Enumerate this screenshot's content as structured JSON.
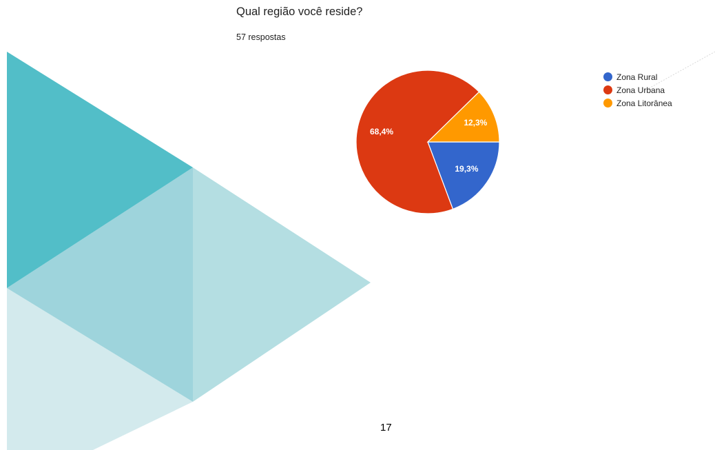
{
  "chart": {
    "title": "Qual região você reside?",
    "subtitle": "57 respostas"
  },
  "chart_data": {
    "type": "pie",
    "title": "Qual região você reside?",
    "subtitle": "57 respostas",
    "slices": [
      {
        "name": "Zona Rural",
        "value": 19.3,
        "label": "19,3%",
        "color": "#3366cc"
      },
      {
        "name": "Zona Urbana",
        "value": 68.4,
        "label": "68,4%",
        "color": "#dc3912"
      },
      {
        "name": "Zona Litorânea",
        "value": 12.3,
        "label": "12,3%",
        "color": "#ff9900"
      }
    ],
    "start_angle_deg": 90,
    "direction": "clockwise",
    "legend_position": "right"
  },
  "legend": {
    "items": [
      {
        "label": "Zona Rural",
        "color": "#3366cc"
      },
      {
        "label": "Zona Urbana",
        "color": "#dc3912"
      },
      {
        "label": "Zona Litorânea",
        "color": "#ff9900"
      }
    ]
  },
  "page": {
    "number": "17"
  },
  "theme": {
    "teal_dark": "#52bec8",
    "teal_mid": "#9ed4dc",
    "teal_light": "#b4dee2",
    "teal_pale": "#d3eaed"
  }
}
